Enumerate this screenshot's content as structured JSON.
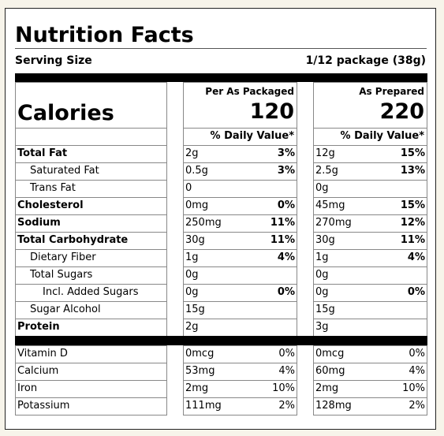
{
  "header": {
    "title": "Nutrition Facts",
    "serving_size_label": "Serving Size",
    "serving_size": "1/12 package (38g)"
  },
  "calories_label": "Calories",
  "daily_value_heading": "% Daily Value*",
  "columns": [
    {
      "heading": "Per As Packaged",
      "calories": "120"
    },
    {
      "heading": "As Prepared",
      "calories": "220"
    }
  ],
  "nutrients": [
    {
      "name": "Total Fat",
      "bold": true,
      "indent": 0,
      "values": [
        [
          "2g",
          "3%"
        ],
        [
          "12g",
          "15%"
        ]
      ]
    },
    {
      "name": "Saturated Fat",
      "bold": false,
      "indent": 1,
      "values": [
        [
          "0.5g",
          "3%"
        ],
        [
          "2.5g",
          "13%"
        ]
      ]
    },
    {
      "name": "Trans Fat",
      "bold": false,
      "indent": 1,
      "values": [
        [
          "0",
          null
        ],
        [
          "0g",
          null
        ]
      ]
    },
    {
      "name": "Cholesterol",
      "bold": true,
      "indent": 0,
      "values": [
        [
          "0mg",
          "0%"
        ],
        [
          "45mg",
          "15%"
        ]
      ]
    },
    {
      "name": "Sodium",
      "bold": true,
      "indent": 0,
      "values": [
        [
          "250mg",
          "11%"
        ],
        [
          "270mg",
          "12%"
        ]
      ]
    },
    {
      "name": "Total Carbohydrate",
      "bold": true,
      "indent": 0,
      "values": [
        [
          "30g",
          "11%"
        ],
        [
          "30g",
          "11%"
        ]
      ]
    },
    {
      "name": "Dietary Fiber",
      "bold": false,
      "indent": 1,
      "values": [
        [
          "1g",
          "4%"
        ],
        [
          "1g",
          "4%"
        ]
      ]
    },
    {
      "name": "Total Sugars",
      "bold": false,
      "indent": 1,
      "values": [
        [
          "0g",
          null
        ],
        [
          "0g",
          null
        ]
      ]
    },
    {
      "name": "Incl. Added Sugars",
      "bold": false,
      "indent": 2,
      "values": [
        [
          "0g",
          "0%"
        ],
        [
          "0g",
          "0%"
        ]
      ]
    },
    {
      "name": "Sugar Alcohol",
      "bold": false,
      "indent": 1,
      "values": [
        [
          "15g",
          null
        ],
        [
          "15g",
          null
        ]
      ]
    },
    {
      "name": "Protein",
      "bold": true,
      "indent": 0,
      "values": [
        [
          "2g",
          null
        ],
        [
          "3g",
          null
        ]
      ]
    }
  ],
  "micronutrients": [
    {
      "name": "Vitamin D",
      "values": [
        [
          "0mcg",
          "0%"
        ],
        [
          "0mcg",
          "0%"
        ]
      ]
    },
    {
      "name": "Calcium",
      "values": [
        [
          "53mg",
          "4%"
        ],
        [
          "60mg",
          "4%"
        ]
      ]
    },
    {
      "name": "Iron",
      "values": [
        [
          "2mg",
          "10%"
        ],
        [
          "2mg",
          "10%"
        ]
      ]
    },
    {
      "name": "Potassium",
      "values": [
        [
          "111mg",
          "2%"
        ],
        [
          "128mg",
          "2%"
        ]
      ]
    }
  ]
}
